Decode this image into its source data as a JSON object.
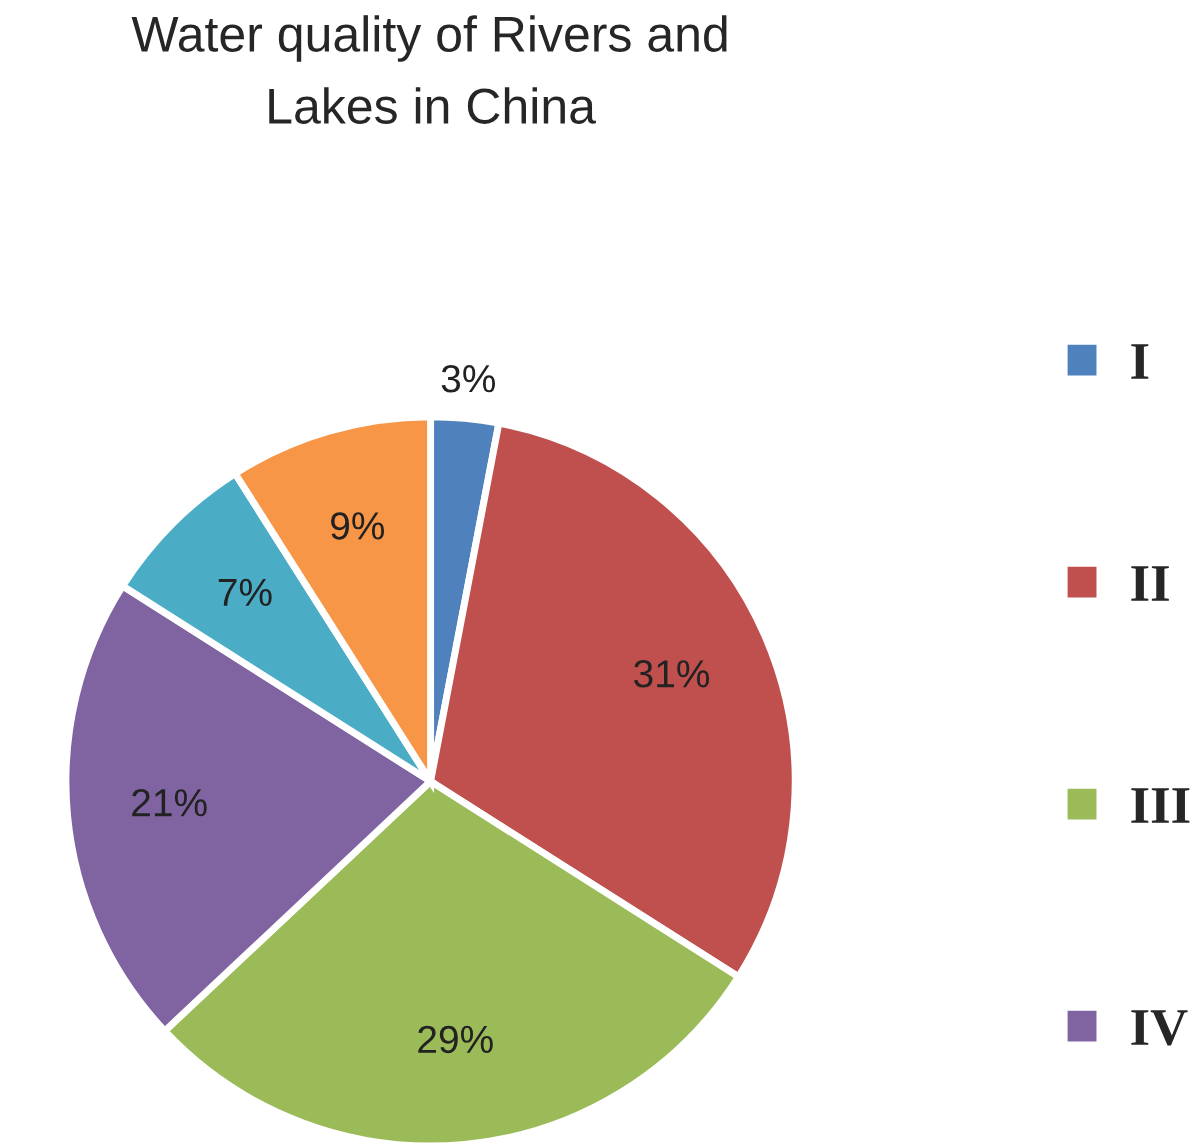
{
  "chart_data": {
    "type": "pie",
    "title": "Water quality of Rivers and\nLakes in China",
    "categories": [
      "I",
      "II",
      "III",
      "IV",
      null,
      null
    ],
    "values": [
      3,
      31,
      29,
      21,
      7,
      9
    ],
    "colors": [
      "#4f81bd",
      "#c0504d",
      "#9bbb59",
      "#8064a2",
      "#4bacc6",
      "#f79646"
    ],
    "value_labels": [
      "3%",
      "31%",
      "29%",
      "21%",
      "7%",
      "9%"
    ],
    "legend": "right"
  }
}
